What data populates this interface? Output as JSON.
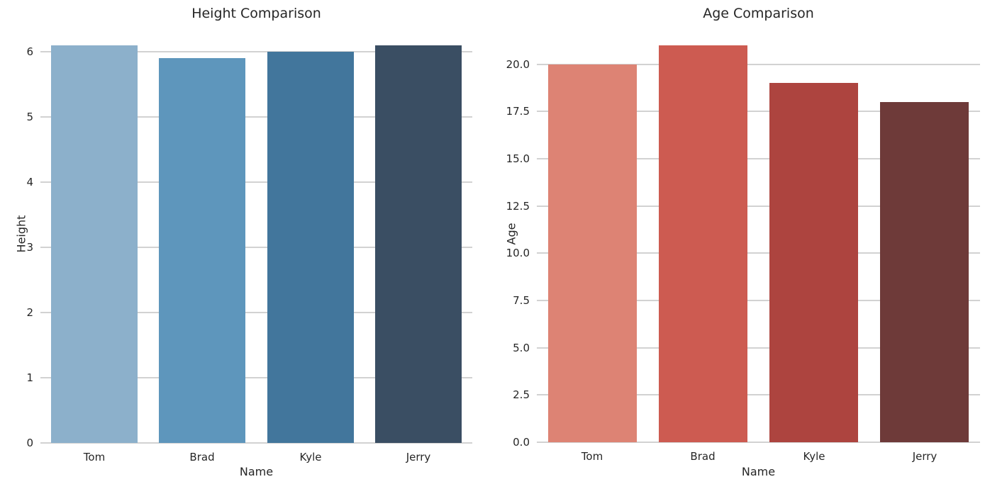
{
  "figure": {
    "background_color": "#ffffff",
    "grid_color": "#d2d2d2",
    "text_color": "#262626"
  },
  "chart_data": [
    {
      "type": "bar",
      "title": "Height Comparison",
      "xlabel": "Name",
      "ylabel": "Height",
      "categories": [
        "Tom",
        "Brad",
        "Kyle",
        "Jerry"
      ],
      "values": [
        6.1,
        5.9,
        6.0,
        6.1
      ],
      "ylim": [
        0,
        6.405
      ],
      "yticks": [
        0,
        1,
        2,
        3,
        4,
        5,
        6
      ],
      "ytick_labels": [
        "0",
        "1",
        "2",
        "3",
        "4",
        "5",
        "6"
      ],
      "bar_colors": [
        "#8cb0cb",
        "#5e96bc",
        "#42769c",
        "#3a4e63"
      ],
      "grid": true,
      "legend_position": "none",
      "bar_width_fraction": 0.8
    },
    {
      "type": "bar",
      "title": "Age Comparison",
      "xlabel": "Name",
      "ylabel": "Age",
      "categories": [
        "Tom",
        "Brad",
        "Kyle",
        "Jerry"
      ],
      "values": [
        20,
        21,
        19,
        18
      ],
      "ylim": [
        0,
        22.05
      ],
      "yticks": [
        0,
        2.5,
        5,
        7.5,
        10,
        12.5,
        15,
        17.5,
        20
      ],
      "ytick_labels": [
        "0.0",
        "2.5",
        "5.0",
        "7.5",
        "10.0",
        "12.5",
        "15.0",
        "17.5",
        "20.0"
      ],
      "bar_colors": [
        "#dd8374",
        "#cd5b51",
        "#ad443f",
        "#6e3a39"
      ],
      "grid": true,
      "legend_position": "none",
      "bar_width_fraction": 0.8
    }
  ]
}
